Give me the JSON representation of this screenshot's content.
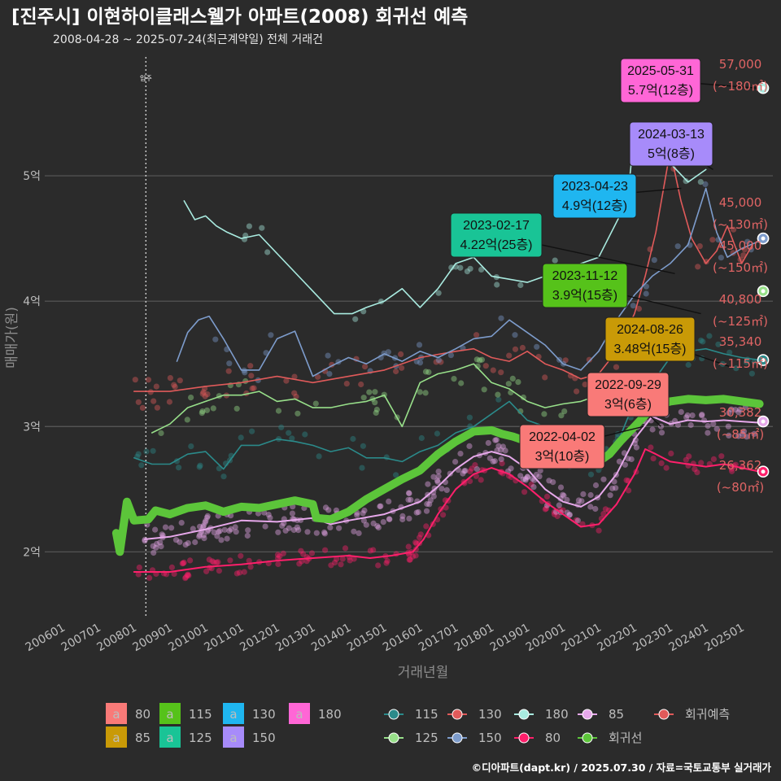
{
  "title": "[진주시] 이현하이클래스웰가 아파트(2008) 회귀선 예측",
  "subtitle": "2008-04-28 ~ 2025-07-24(최근계약일) 전체 거래건",
  "caption": "©디아파트(dapt.kr) / 2025.07.30 / 자료=국토교통부 실거래가",
  "move_in_label": "입주",
  "chart_data": {
    "type": "line",
    "title": "[진주시] 이현하이클래스웰가 아파트(2008) 회귀선 예측",
    "xlabel": "거래년월",
    "ylabel": "매매가(원)",
    "xlim": [
      2005.5,
      2026.1
    ],
    "ylim": [
      1.47,
      6.0
    ],
    "x_ticks": [
      {
        "x": 2006.0,
        "label": "200601"
      },
      {
        "x": 2007.0,
        "label": "200701"
      },
      {
        "x": 2008.0,
        "label": "200801"
      },
      {
        "x": 2009.0,
        "label": "200901"
      },
      {
        "x": 2010.0,
        "label": "201001"
      },
      {
        "x": 2011.0,
        "label": "201101"
      },
      {
        "x": 2012.0,
        "label": "201201"
      },
      {
        "x": 2013.0,
        "label": "201301"
      },
      {
        "x": 2014.0,
        "label": "201401"
      },
      {
        "x": 2015.0,
        "label": "201501"
      },
      {
        "x": 2016.0,
        "label": "201601"
      },
      {
        "x": 2017.0,
        "label": "201701"
      },
      {
        "x": 2018.0,
        "label": "201801"
      },
      {
        "x": 2019.0,
        "label": "201901"
      },
      {
        "x": 2020.0,
        "label": "202001"
      },
      {
        "x": 2021.0,
        "label": "202101"
      },
      {
        "x": 2022.0,
        "label": "202201"
      },
      {
        "x": 2023.0,
        "label": "202301"
      },
      {
        "x": 2024.0,
        "label": "202401"
      },
      {
        "x": 2025.0,
        "label": "202501"
      }
    ],
    "y_ticks": [
      {
        "y": 2,
        "label": "2억"
      },
      {
        "y": 3,
        "label": "3억"
      },
      {
        "y": 4,
        "label": "4억"
      },
      {
        "y": 5,
        "label": "5억"
      }
    ],
    "grid": true,
    "move_in_x": 2008.33,
    "series": [
      {
        "name": "80",
        "color": "#ff1f6b",
        "width": 2,
        "x": [
          2008.0,
          2009.0,
          2010.0,
          2011.0,
          2012.0,
          2013.0,
          2014.0,
          2014.6,
          2015.2,
          2015.8,
          2016.1,
          2016.5,
          2017.0,
          2017.5,
          2018.0,
          2018.5,
          2019.0,
          2019.5,
          2020.0,
          2020.5,
          2021.0,
          2021.5,
          2022.0,
          2022.3,
          2022.6,
          2023.0,
          2023.5,
          2024.0,
          2024.5,
          2025.0,
          2025.5
        ],
        "y": [
          1.84,
          1.84,
          1.88,
          1.9,
          1.93,
          1.95,
          1.97,
          1.95,
          1.97,
          2.0,
          2.1,
          2.3,
          2.5,
          2.62,
          2.67,
          2.62,
          2.52,
          2.4,
          2.3,
          2.2,
          2.22,
          2.38,
          2.62,
          2.82,
          2.78,
          2.72,
          2.7,
          2.68,
          2.7,
          2.67,
          2.64
        ]
      },
      {
        "name": "85",
        "color": "#e6a8ea",
        "width": 2,
        "x": [
          2008.3,
          2009.0,
          2010.0,
          2011.0,
          2012.0,
          2013.0,
          2013.5,
          2014.0,
          2015.0,
          2016.0,
          2016.5,
          2017.0,
          2017.5,
          2018.0,
          2018.5,
          2019.0,
          2019.5,
          2020.0,
          2020.5,
          2021.0,
          2021.5,
          2022.0,
          2022.5,
          2023.0,
          2023.5,
          2024.0,
          2024.5,
          2025.0,
          2025.5
        ],
        "y": [
          2.1,
          2.12,
          2.18,
          2.25,
          2.24,
          2.27,
          2.22,
          2.25,
          2.3,
          2.4,
          2.52,
          2.66,
          2.76,
          2.8,
          2.76,
          2.66,
          2.5,
          2.4,
          2.36,
          2.44,
          2.62,
          2.9,
          3.08,
          3.02,
          3.05,
          3.04,
          3.05,
          3.04,
          3.03
        ]
      },
      {
        "name": "회귀선",
        "color": "#5cc53a",
        "width": 10,
        "x": [
          2007.5,
          2007.6,
          2007.8,
          2008.0,
          2008.4,
          2008.6,
          2009.0,
          2009.5,
          2010.0,
          2010.5,
          2011.0,
          2011.5,
          2012.0,
          2012.5,
          2013.0,
          2013.1,
          2013.5,
          2014.0,
          2014.5,
          2015.0,
          2015.5,
          2016.0,
          2016.5,
          2017.0,
          2017.5,
          2018.0,
          2018.3,
          2018.6,
          2019.0,
          2019.5,
          2020.0,
          2020.3,
          2020.6,
          2021.0,
          2021.3,
          2021.6,
          2022.0,
          2022.5,
          2023.0,
          2023.5,
          2024.0,
          2024.5,
          2025.0,
          2025.5
        ],
        "y": [
          2.15,
          2.0,
          2.4,
          2.25,
          2.26,
          2.33,
          2.3,
          2.35,
          2.37,
          2.32,
          2.36,
          2.35,
          2.38,
          2.41,
          2.38,
          2.27,
          2.26,
          2.32,
          2.42,
          2.5,
          2.58,
          2.65,
          2.78,
          2.88,
          2.96,
          2.97,
          2.94,
          2.92,
          2.88,
          2.85,
          2.72,
          2.7,
          2.71,
          2.72,
          2.78,
          2.88,
          3.0,
          3.15,
          3.2,
          3.22,
          3.21,
          3.22,
          3.2,
          3.18
        ]
      },
      {
        "name": "115",
        "color": "#2b8a8a",
        "width": 1.6,
        "x": [
          2008.0,
          2008.5,
          2009.0,
          2009.5,
          2010.0,
          2010.5,
          2011.0,
          2011.5,
          2012.0,
          2012.5,
          2013.0,
          2013.5,
          2014.0,
          2014.5,
          2015.0,
          2015.5,
          2016.0,
          2016.5,
          2017.0,
          2017.5,
          2018.0,
          2018.5,
          2019.0,
          2019.5,
          2020.0,
          2020.5,
          2021.0,
          2021.5,
          2022.0,
          2022.5,
          2023.0,
          2023.5,
          2024.0,
          2024.5,
          2025.0,
          2025.5
        ],
        "y": [
          2.75,
          2.7,
          2.7,
          2.78,
          2.8,
          2.66,
          2.85,
          2.85,
          2.9,
          2.88,
          2.85,
          2.8,
          2.83,
          2.75,
          2.75,
          2.72,
          2.8,
          2.85,
          2.95,
          3.0,
          3.1,
          3.2,
          3.05,
          3.0,
          2.85,
          2.7,
          2.72,
          2.85,
          3.2,
          3.35,
          3.55,
          3.6,
          3.62,
          3.58,
          3.55,
          3.53
        ]
      },
      {
        "name": "125",
        "color": "#98e08a",
        "width": 1.6,
        "x": [
          2008.5,
          2009.0,
          2009.5,
          2010.0,
          2010.5,
          2011.0,
          2011.5,
          2012.0,
          2012.5,
          2013.0,
          2013.5,
          2014.0,
          2014.5,
          2015.0,
          2015.5,
          2016.0,
          2016.5,
          2017.0,
          2017.5,
          2018.0,
          2018.5,
          2019.0,
          2019.5,
          2020.0,
          2020.5,
          2021.0,
          2021.5
        ],
        "y": [
          2.95,
          3.02,
          3.15,
          3.2,
          3.25,
          3.25,
          3.28,
          3.2,
          3.22,
          3.15,
          3.15,
          3.18,
          3.2,
          3.25,
          3.0,
          3.35,
          3.42,
          3.45,
          3.5,
          3.35,
          3.3,
          3.2,
          3.15,
          3.18,
          3.2,
          3.25,
          3.2
        ]
      },
      {
        "name": "130",
        "color": "#e05a5a",
        "width": 1.6,
        "x": [
          2008.0,
          2009.0,
          2010.0,
          2011.0,
          2012.0,
          2013.0,
          2014.0,
          2015.0,
          2016.0,
          2017.0,
          2017.5,
          2018.0,
          2018.5,
          2019.0,
          2019.5,
          2020.0,
          2020.5,
          2021.0,
          2021.5,
          2022.0,
          2022.3,
          2022.6,
          2023.0,
          2023.3,
          2023.6,
          2024.0,
          2024.3,
          2024.6,
          2025.0,
          2025.3
        ],
        "y": [
          3.28,
          3.28,
          3.32,
          3.35,
          3.4,
          3.35,
          3.4,
          3.45,
          3.55,
          3.6,
          3.62,
          3.55,
          3.52,
          3.6,
          3.5,
          3.45,
          3.38,
          3.42,
          3.6,
          3.9,
          4.2,
          4.55,
          5.2,
          4.8,
          4.5,
          4.3,
          4.4,
          4.6,
          4.3,
          4.45
        ]
      },
      {
        "name": "150",
        "color": "#7d9ccc",
        "width": 1.6,
        "x": [
          2009.2,
          2009.5,
          2009.8,
          2010.1,
          2010.5,
          2011.0,
          2011.5,
          2012.0,
          2012.5,
          2013.0,
          2013.5,
          2014.0,
          2014.5,
          2015.0,
          2015.5,
          2016.0,
          2016.5,
          2017.0,
          2017.5,
          2018.0,
          2018.5,
          2019.0,
          2019.5,
          2020.0,
          2020.5,
          2021.0,
          2021.5,
          2022.0,
          2022.5,
          2023.0,
          2023.5,
          2024.0,
          2024.3,
          2024.6,
          2025.0,
          2025.5
        ],
        "y": [
          3.52,
          3.75,
          3.85,
          3.88,
          3.7,
          3.45,
          3.45,
          3.7,
          3.76,
          3.4,
          3.48,
          3.55,
          3.5,
          3.58,
          3.52,
          3.6,
          3.55,
          3.62,
          3.7,
          3.72,
          3.85,
          3.75,
          3.65,
          3.5,
          3.45,
          3.6,
          3.85,
          4.05,
          4.2,
          4.3,
          4.45,
          4.9,
          4.55,
          4.35,
          4.42,
          4.48
        ]
      },
      {
        "name": "180",
        "color": "#a9ebe0",
        "width": 1.6,
        "x": [
          2009.4,
          2009.7,
          2010.0,
          2010.3,
          2010.6,
          2011.0,
          2011.5,
          2013.6,
          2014.1,
          2014.5,
          2015.0,
          2015.5,
          2016.0,
          2016.5,
          2017.0,
          2017.5,
          2018.0,
          2019.0,
          2020.0,
          2021.0,
          2021.8,
          2022.0,
          2022.5,
          2023.0,
          2023.5,
          2024.0
        ],
        "y": [
          4.8,
          4.65,
          4.68,
          4.6,
          4.55,
          4.5,
          4.53,
          3.9,
          3.9,
          3.95,
          4.0,
          4.1,
          3.95,
          4.1,
          4.3,
          4.35,
          4.2,
          4.15,
          4.25,
          4.35,
          4.8,
          5.35,
          5.3,
          5.1,
          4.95,
          5.05
        ]
      }
    ],
    "annotations": [
      {
        "date": "2025-05-31",
        "price": "5.7억(12층)",
        "color": "#ff66d6",
        "x": 2025.41,
        "y": 5.7
      },
      {
        "date": "2024-03-13",
        "price": "5억(8층)",
        "color": "#a78bfa",
        "x": 2024.2,
        "y": 5.05
      },
      {
        "date": "2023-04-23",
        "price": "4.9억(12층)",
        "color": "#1fb6f0",
        "x": 2023.31,
        "y": 4.9
      },
      {
        "date": "2023-02-17",
        "price": "4.22억(25층)",
        "color": "#19c496",
        "x": 2023.13,
        "y": 4.22
      },
      {
        "date": "2023-11-12",
        "price": "3.9억(15층)",
        "color": "#56c21a",
        "x": 2023.86,
        "y": 3.9
      },
      {
        "date": "2024-08-26",
        "price": "3.48억(15층)",
        "color": "#c99a07",
        "x": 2024.65,
        "y": 3.48
      },
      {
        "date": "2022-09-29",
        "price": "3억(6층)",
        "color": "#f97a78",
        "x": 2022.74,
        "y": 3.0
      },
      {
        "date": "2022-04-02",
        "price": "3억(10층)",
        "color": "#f97a78",
        "x": 2022.25,
        "y": 3.0
      }
    ],
    "forecasts": [
      {
        "value": "57,000",
        "area": "(~180㎡)",
        "y": 5.7,
        "color": "#a9ebe0"
      },
      {
        "value": "45,000",
        "area": "(~130㎡)",
        "y": 4.5,
        "color": "#e05a5a"
      },
      {
        "value": "45,000",
        "area": "(~150㎡)",
        "y": 4.5,
        "color": "#7d9ccc"
      },
      {
        "value": "40,800",
        "area": "(~125㎡)",
        "y": 4.08,
        "color": "#98e08a"
      },
      {
        "value": "35,340",
        "area": "(~115㎡)",
        "y": 3.53,
        "color": "#2b8a8a"
      },
      {
        "value": "30,382",
        "area": "(~85㎡)",
        "y": 3.04,
        "color": "#e6a8ea"
      },
      {
        "value": "26,362",
        "area": "(~80㎡)",
        "y": 2.64,
        "color": "#ff1f6b"
      }
    ]
  },
  "legend_labels": {
    "items": [
      {
        "label": "80",
        "color": "#f97a78"
      },
      {
        "label": "85",
        "color": "#c99a07"
      },
      {
        "label": "115",
        "color": "#56c21a"
      },
      {
        "label": "125",
        "color": "#19c496"
      },
      {
        "label": "130",
        "color": "#1fb6f0"
      },
      {
        "label": "150",
        "color": "#a78bfa"
      },
      {
        "label": "180",
        "color": "#ff66d6"
      }
    ]
  },
  "legend_lines": {
    "items": [
      {
        "label": "115",
        "color": "#2b8a8a"
      },
      {
        "label": "125",
        "color": "#98e08a"
      },
      {
        "label": "130",
        "color": "#e05a5a"
      },
      {
        "label": "150",
        "color": "#7d9ccc"
      },
      {
        "label": "180",
        "color": "#a9ebe0"
      },
      {
        "label": "80",
        "color": "#ff1f6b"
      },
      {
        "label": "85",
        "color": "#e6a8ea"
      },
      {
        "label": "회귀선",
        "color": "#5cc53a"
      },
      {
        "label": "회귀예측",
        "color": "#e05a5a"
      }
    ]
  }
}
